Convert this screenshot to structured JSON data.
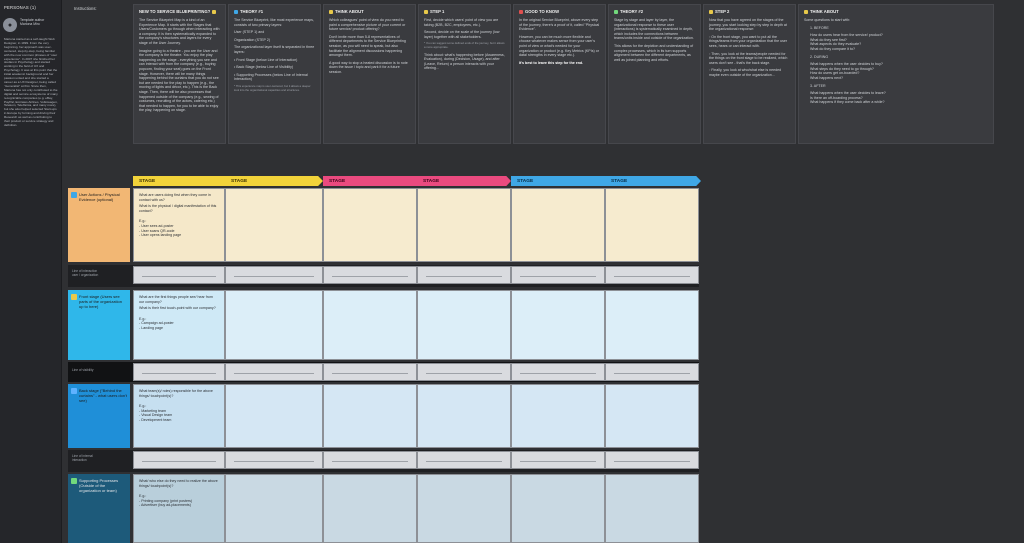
{
  "left_panel": {
    "title": "PERSONAS (1)",
    "template_author": "Template author",
    "author_name": "Mariona Miro",
    "bio": "Mariona started as a self-taught Web Designer, in 1999. From the very beginning, her approach was user-centered, step-by-step, being familiar with the now common phrases of “user experience”. In 2007 she finished her studies in Psychology and started working in the field of UX and Psychology. It was at this point that the initial academic background and her passion united and she started a career as a UX Designer, being called “Generalist” at first. Since then, Mariona has not only contributed to the digital and service ecosystems of many recognizable companies (e.g. eBay, PayPal, Emirates Airlines, Volkswagen, Telekom, Telefónica, and many more), but she also helped selected Start-ups in Europe by forming and driving their Research as well as contributing to their product or service strategy and definition."
  },
  "instructions_label": "Instructions:",
  "cards": [
    {
      "title": "NEW TO SERVICE BLUEPRINTING?",
      "icon_color": "#e8c94a",
      "p1": "The Service Blueprint Map is a kind of an Experience Map. It starts with the Stages that Users/Customers go through when interacting with a company. It is then systematically expanded to the company's structures and layers for every stage of the User Journey.",
      "p2": "Imagine going to a theatre - you are the User and the company is the theatre. You enjoy the play happening on the stage - everything you see and can interact with from the company (e.g., buying popcorn, finding your seat) goes on the Front stage. However, there will be many things happening behind the curtains that you do not see but are needed for the play to happen (e.g., the moving of lights and décor, etc.). This is the Back stage. Then, there will be also processes that happened outside of the company (e.g., sewing of costumes, recruiting of the actors, catering etc.) that needed to happen, for you to be able to enjoy the play, happening on stage."
    },
    {
      "title": "THEORY #1",
      "icon_color": "#3fa7e6",
      "p1": "The Service Blueprint, like most experience maps, consists of two primary layers:",
      "l1": "User (STEP 1) and",
      "l2": "Organization (STEP 2)",
      "p2": "The organizational layer itself is separated in three layers:",
      "b1": "• Front Stage (below Line of Interaction)",
      "b2": "• Back Stage (below Line of Visibility)",
      "b3": "• Supporting Processes (below Line of Internal Interaction)",
      "fine": "* This experience map is user-centered, but it allows a deeper look into the organizational capacities and structures."
    },
    {
      "title": "THINK ABOUT",
      "icon_color": "#e8c94a",
      "p1": "Which colleagues' point of view do you need to paint a comprehensive picture of your current or future service/ product offering?",
      "p2": "Don't invite more than 5-8 representatives of different departments to the Service Blueprinting session, as you will need to speak, but also facilitate the alignment discussions happening amongst them.",
      "p3": "A good way to stop a heated discussion is to note down the issue / topic and park it for a future session."
    },
    {
      "title": "STEP 1",
      "icon_color": "#e8c94a",
      "p1": "First, decide which users' point of view you are taking (B2B, B2C, employees, etc.).",
      "p2": "Second, decide on the scale of the journey (low layer) together with all stakeholders.",
      "fine": "* You can suggest some defined ends of the journey, but it allows a more appropriate.",
      "p3": "Think about: what's happening before (Awareness, Evaluation), during (Decision, Usage), and after (Leave, Return) a person interacts with your offering..."
    },
    {
      "title": "GOOD TO KNOW",
      "icon_color": "#e04f4f",
      "p1": "In the original Service Blueprint, above every step of the journey, there's a proof of it, called \"Physical Evidence\".",
      "p2": "However, you can be much more flexible and choose whatever makes sense from your user's point of view or what's needed for your organization or product (e.g. Key Metrics (KPIs) or data/ strengths in every stage etc.).",
      "p3": "It's best to leave this step for the end."
    },
    {
      "title": "THEORY #2",
      "icon_color": "#72d97c",
      "p1": "Stage by stage and layer by layer, the organizational response to these user (interactions) is systematically examined in depth, which includes the connections between teams/units inside and outside of the organization.",
      "p2": "This allows for the depiction and understanding of complex processes, which in its turn supports alignment between the different departments, as well as joined planning and efforts."
    },
    {
      "title": "STEP 2",
      "icon_color": "#3fa7e6",
      "p1": "Now that you have agreed on the stages of the journey, you start looking step by step in depth at the organizational response:",
      "b1": "◦ On the front stage, you want to put all the things/teams from your organization that the user sees, hears or can interact with.",
      "b2": "◦ Then, you look at the teams/people needed for the things on the front stage to be realized, which users don't see - that's the back stage.",
      "b3": "◦ Finally, you look at who/what else is needed maybe even outside of the organization..."
    },
    {
      "title": "THINK ABOUT",
      "icon_color": "#e8c94a",
      "p1": "Some questions to start with:",
      "h1": "1. BEFORE",
      "q1": "How do users hear from the service/ product?\nWhat do they see first?\nWhat aspects do they evaluate?\nWhat do they compare it to?",
      "h2": "2. DURING",
      "q2": "What happens when the user decides to buy?\nWhat steps do they need to go through?\nHow do users get on-boarded?\nWhat happens next?",
      "h3": "3. AFTER",
      "q3": "What happens when the user decides to leave?\nIs there an off-boarding process?\nWhat happens if they come back after a while?"
    }
  ],
  "stages": [
    {
      "label": "STAGE",
      "color": "#f2d33a"
    },
    {
      "label": "STAGE",
      "color": "#f2d33a"
    },
    {
      "label": "STAGE",
      "color": "#ea4a7f"
    },
    {
      "label": "STAGE",
      "color": "#ea4a7f"
    },
    {
      "label": "STAGE",
      "color": "#3fa7e6"
    },
    {
      "label": "STAGE",
      "color": "#3fa7e6"
    }
  ],
  "rows": {
    "user": {
      "label": "User Actions / Physical Evidence (optional)",
      "q1": "What are users doing first when they come in contact with us?",
      "q2": "What is the physical / digital manifestation of this contact?",
      "eg": "E.g.:\n- User sees ad-poster\n- User scans QR-code\n- User opens landing page"
    },
    "line_interaction": "Line of interaction\nuser / organization",
    "front": {
      "label": "Front stage (Users see parts of the organization up to here)",
      "q1": "What are the first things people see/ hear from our company?",
      "q2": "What is their first touch-point with our company?",
      "eg": "E.g.:\n- Campaign ad-poster\n- Landing page"
    },
    "line_visibility": "Line of visibility",
    "back": {
      "label": "Back stage (\"Behind the curtains\" - what users don't see)",
      "q1": "What team(s)/ roles) responsible for the above things/ touchpoint(s)?",
      "eg": "E.g.:\n- Marketing team\n- Visual Design team\n- Development team"
    },
    "line_internal": "Line of internal\ninteraction",
    "support": {
      "label": "Supporting Processes (Outside of the organization or team)",
      "q1": "What/ who else do they need to realize the above things/ touchpoint(s)?",
      "eg": "E.g.:\n- Printing company (print posters)\n- Advertiser (buy ad-placements)"
    }
  }
}
